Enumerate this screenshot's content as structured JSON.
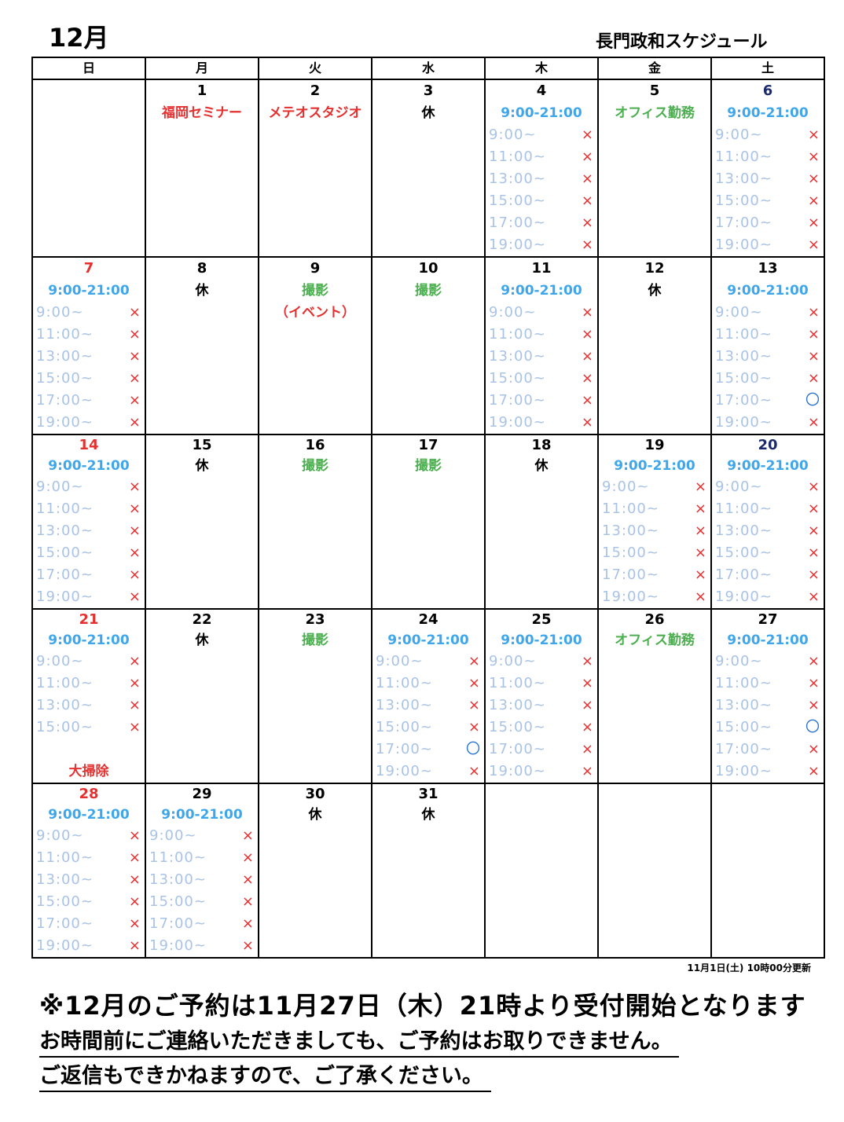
{
  "header": {
    "month": "12月",
    "owner_title": "長門政和スケジュール"
  },
  "colors": {
    "sunday": "#e53030",
    "saturday": "#1a2a6c",
    "hours": "#3ea6ea",
    "green": "#4caf50",
    "red": "#e53030",
    "slot_text": "#a9c3e6",
    "x_mark": "#e53030",
    "o_mark": "#2a74d6"
  },
  "weekdays": [
    "日",
    "月",
    "火",
    "水",
    "木",
    "金",
    "土"
  ],
  "marks": {
    "x": "×",
    "o": "〇"
  },
  "weeks": [
    [
      null,
      {
        "day": "1",
        "labels": [
          {
            "text": "福岡セミナー",
            "color": "red"
          }
        ]
      },
      {
        "day": "2",
        "labels": [
          {
            "text": "メテオスタジオ",
            "color": "red"
          }
        ]
      },
      {
        "day": "3",
        "labels": [
          {
            "text": "休",
            "color": "black"
          }
        ]
      },
      {
        "day": "4",
        "labels": [
          {
            "text": "9:00-21:00",
            "color": "hours"
          }
        ],
        "slots": [
          [
            "9:00~",
            "x"
          ],
          [
            "11:00~",
            "x"
          ],
          [
            "13:00~",
            "x"
          ],
          [
            "15:00~",
            "x"
          ],
          [
            "17:00~",
            "x"
          ],
          [
            "19:00~",
            "x"
          ]
        ]
      },
      {
        "day": "5",
        "labels": [
          {
            "text": "オフィス勤務",
            "color": "green"
          }
        ]
      },
      {
        "day": "6",
        "day_color": "saturday",
        "labels": [
          {
            "text": "9:00-21:00",
            "color": "hours"
          }
        ],
        "slots": [
          [
            "9:00~",
            "x"
          ],
          [
            "11:00~",
            "x"
          ],
          [
            "13:00~",
            "x"
          ],
          [
            "15:00~",
            "x"
          ],
          [
            "17:00~",
            "x"
          ],
          [
            "19:00~",
            "x"
          ]
        ]
      }
    ],
    [
      {
        "day": "7",
        "day_color": "sunday",
        "labels": [
          {
            "text": "9:00-21:00",
            "color": "hours"
          }
        ],
        "slots": [
          [
            "9:00~",
            "x"
          ],
          [
            "11:00~",
            "x"
          ],
          [
            "13:00~",
            "x"
          ],
          [
            "15:00~",
            "x"
          ],
          [
            "17:00~",
            "x"
          ],
          [
            "19:00~",
            "x"
          ]
        ]
      },
      {
        "day": "8",
        "labels": [
          {
            "text": "休",
            "color": "black"
          }
        ]
      },
      {
        "day": "9",
        "labels": [
          {
            "text": "撮影",
            "color": "green"
          },
          {
            "text": "（イベント）",
            "color": "red"
          }
        ]
      },
      {
        "day": "10",
        "labels": [
          {
            "text": "撮影",
            "color": "green"
          }
        ]
      },
      {
        "day": "11",
        "labels": [
          {
            "text": "9:00-21:00",
            "color": "hours"
          }
        ],
        "slots": [
          [
            "9:00~",
            "x"
          ],
          [
            "11:00~",
            "x"
          ],
          [
            "13:00~",
            "x"
          ],
          [
            "15:00~",
            "x"
          ],
          [
            "17:00~",
            "x"
          ],
          [
            "19:00~",
            "x"
          ]
        ]
      },
      {
        "day": "12",
        "labels": [
          {
            "text": "休",
            "color": "black"
          }
        ]
      },
      {
        "day": "13",
        "labels": [
          {
            "text": "9:00-21:00",
            "color": "hours"
          }
        ],
        "slots": [
          [
            "9:00~",
            "x"
          ],
          [
            "11:00~",
            "x"
          ],
          [
            "13:00~",
            "x"
          ],
          [
            "15:00~",
            "x"
          ],
          [
            "17:00~",
            "o"
          ],
          [
            "19:00~",
            "x"
          ]
        ]
      }
    ],
    [
      {
        "day": "14",
        "day_color": "sunday",
        "labels": [
          {
            "text": "9:00-21:00",
            "color": "hours"
          }
        ],
        "slots": [
          [
            "9:00~",
            "x"
          ],
          [
            "11:00~",
            "x"
          ],
          [
            "13:00~",
            "x"
          ],
          [
            "15:00~",
            "x"
          ],
          [
            "17:00~",
            "x"
          ],
          [
            "19:00~",
            "x"
          ]
        ]
      },
      {
        "day": "15",
        "labels": [
          {
            "text": "休",
            "color": "black"
          }
        ]
      },
      {
        "day": "16",
        "labels": [
          {
            "text": "撮影",
            "color": "green"
          }
        ]
      },
      {
        "day": "17",
        "labels": [
          {
            "text": "撮影",
            "color": "green"
          }
        ]
      },
      {
        "day": "18",
        "labels": [
          {
            "text": "休",
            "color": "black"
          }
        ]
      },
      {
        "day": "19",
        "labels": [
          {
            "text": "9:00-21:00",
            "color": "hours"
          }
        ],
        "slots": [
          [
            "9:00~",
            "x"
          ],
          [
            "11:00~",
            "x"
          ],
          [
            "13:00~",
            "x"
          ],
          [
            "15:00~",
            "x"
          ],
          [
            "17:00~",
            "x"
          ],
          [
            "19:00~",
            "x"
          ]
        ]
      },
      {
        "day": "20",
        "day_color": "saturday",
        "labels": [
          {
            "text": "9:00-21:00",
            "color": "hours"
          }
        ],
        "slots": [
          [
            "9:00~",
            "x"
          ],
          [
            "11:00~",
            "x"
          ],
          [
            "13:00~",
            "x"
          ],
          [
            "15:00~",
            "x"
          ],
          [
            "17:00~",
            "x"
          ],
          [
            "19:00~",
            "x"
          ]
        ]
      }
    ],
    [
      {
        "day": "21",
        "day_color": "sunday",
        "labels": [
          {
            "text": "9:00-21:00",
            "color": "hours"
          }
        ],
        "slots": [
          [
            "9:00~",
            "x"
          ],
          [
            "11:00~",
            "x"
          ],
          [
            "13:00~",
            "x"
          ],
          [
            "15:00~",
            "x"
          ]
        ],
        "footer": {
          "text": "大掃除",
          "color": "red"
        }
      },
      {
        "day": "22",
        "labels": [
          {
            "text": "休",
            "color": "black"
          }
        ]
      },
      {
        "day": "23",
        "labels": [
          {
            "text": "撮影",
            "color": "green"
          }
        ]
      },
      {
        "day": "24",
        "labels": [
          {
            "text": "9:00-21:00",
            "color": "hours"
          }
        ],
        "slots": [
          [
            "9:00~",
            "x"
          ],
          [
            "11:00~",
            "x"
          ],
          [
            "13:00~",
            "x"
          ],
          [
            "15:00~",
            "x"
          ],
          [
            "17:00~",
            "o"
          ],
          [
            "19:00~",
            "x"
          ]
        ]
      },
      {
        "day": "25",
        "labels": [
          {
            "text": "9:00-21:00",
            "color": "hours"
          }
        ],
        "slots": [
          [
            "9:00~",
            "x"
          ],
          [
            "11:00~",
            "x"
          ],
          [
            "13:00~",
            "x"
          ],
          [
            "15:00~",
            "x"
          ],
          [
            "17:00~",
            "x"
          ],
          [
            "19:00~",
            "x"
          ]
        ]
      },
      {
        "day": "26",
        "labels": [
          {
            "text": "オフィス勤務",
            "color": "green"
          }
        ]
      },
      {
        "day": "27",
        "labels": [
          {
            "text": "9:00-21:00",
            "color": "hours"
          }
        ],
        "slots": [
          [
            "9:00~",
            "x"
          ],
          [
            "11:00~",
            "x"
          ],
          [
            "13:00~",
            "x"
          ],
          [
            "15:00~",
            "o"
          ],
          [
            "17:00~",
            "x"
          ],
          [
            "19:00~",
            "x"
          ]
        ]
      }
    ],
    [
      {
        "day": "28",
        "day_color": "sunday",
        "labels": [
          {
            "text": "9:00-21:00",
            "color": "hours"
          }
        ],
        "slots": [
          [
            "9:00~",
            "x"
          ],
          [
            "11:00~",
            "x"
          ],
          [
            "13:00~",
            "x"
          ],
          [
            "15:00~",
            "x"
          ],
          [
            "17:00~",
            "x"
          ],
          [
            "19:00~",
            "x"
          ]
        ]
      },
      {
        "day": "29",
        "labels": [
          {
            "text": "9:00-21:00",
            "color": "hours"
          }
        ],
        "slots": [
          [
            "9:00~",
            "x"
          ],
          [
            "11:00~",
            "x"
          ],
          [
            "13:00~",
            "x"
          ],
          [
            "15:00~",
            "x"
          ],
          [
            "17:00~",
            "x"
          ],
          [
            "19:00~",
            "x"
          ]
        ]
      },
      {
        "day": "30",
        "labels": [
          {
            "text": "休",
            "color": "black"
          }
        ]
      },
      {
        "day": "31",
        "labels": [
          {
            "text": "休",
            "color": "black"
          }
        ]
      },
      null,
      null,
      null
    ]
  ],
  "updated": "11月1日(土) 10時00分更新",
  "notices": {
    "line1": "※12月のご予約は11月27日（木）21時より受付開始となります",
    "line2": "お時間前にご連絡いただきましても、ご予約はお取りできません。",
    "line3": "ご返信もできかねますので、ご了承ください。"
  }
}
